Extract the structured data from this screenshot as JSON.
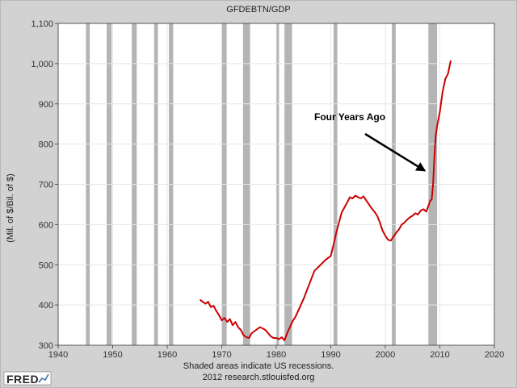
{
  "chart_data": {
    "type": "line",
    "title": "GFDEBTN/GDP",
    "xlabel": "",
    "ylabel": "(Mil. of $/Bil. of $)",
    "xlim": [
      1940,
      2020
    ],
    "ylim": [
      300,
      1100
    ],
    "x_ticks": [
      1940,
      1950,
      1960,
      1970,
      1980,
      1990,
      2000,
      2010,
      2020
    ],
    "x_tick_labels": [
      "1940",
      "1950",
      "1960",
      "1970",
      "1980",
      "1990",
      "2000",
      "2010",
      "2020"
    ],
    "y_ticks": [
      300,
      400,
      500,
      600,
      700,
      800,
      900,
      1000,
      1100
    ],
    "y_tick_labels": [
      "300",
      "400",
      "500",
      "600",
      "700",
      "800",
      "900",
      "1,000",
      "1,100"
    ],
    "grid": true,
    "line_color": "#cc0000",
    "recession_color": "#b4b4b4",
    "plot_background": "#ffffff",
    "frame_background": "#d2d2d2",
    "recessions": [
      [
        1945.1,
        1945.8
      ],
      [
        1948.9,
        1949.8
      ],
      [
        1953.5,
        1954.4
      ],
      [
        1957.6,
        1958.3
      ],
      [
        1960.3,
        1961.1
      ],
      [
        1969.9,
        1970.9
      ],
      [
        1973.9,
        1975.2
      ],
      [
        1980.0,
        1980.5
      ],
      [
        1981.5,
        1982.9
      ],
      [
        1990.5,
        1991.2
      ],
      [
        2001.2,
        2001.9
      ],
      [
        2007.9,
        2009.5
      ]
    ],
    "series": [
      {
        "name": "GFDEBTN/GDP",
        "x": [
          1966.0,
          1966.5,
          1967.0,
          1967.5,
          1968.0,
          1968.5,
          1969.0,
          1969.5,
          1970.0,
          1970.5,
          1971.0,
          1971.5,
          1972.0,
          1972.5,
          1973.0,
          1973.5,
          1974.0,
          1974.5,
          1975.0,
          1975.5,
          1976.0,
          1976.5,
          1977.0,
          1977.5,
          1978.0,
          1978.5,
          1979.0,
          1979.5,
          1980.0,
          1980.5,
          1981.0,
          1981.5,
          1982.0,
          1982.5,
          1983.0,
          1983.5,
          1984.0,
          1985.0,
          1986.0,
          1987.0,
          1988.0,
          1989.0,
          1990.0,
          1990.5,
          1991.0,
          1991.5,
          1992.0,
          1993.0,
          1993.5,
          1994.0,
          1994.5,
          1995.0,
          1995.5,
          1996.0,
          1996.5,
          1997.0,
          1997.5,
          1998.0,
          1998.5,
          1999.0,
          1999.5,
          2000.0,
          2000.5,
          2001.0,
          2001.5,
          2002.0,
          2002.5,
          2003.0,
          2003.5,
          2004.0,
          2004.5,
          2005.0,
          2005.5,
          2006.0,
          2006.5,
          2007.0,
          2007.5,
          2008.0,
          2008.25,
          2008.5,
          2008.75,
          2009.0,
          2009.25,
          2009.5,
          2010.0,
          2010.5,
          2011.0,
          2011.5,
          2012.0
        ],
        "y": [
          413,
          408,
          403,
          408,
          395,
          398,
          385,
          375,
          362,
          368,
          358,
          365,
          350,
          358,
          345,
          338,
          325,
          320,
          318,
          330,
          335,
          340,
          345,
          342,
          338,
          330,
          322,
          318,
          318,
          315,
          320,
          312,
          330,
          345,
          360,
          370,
          385,
          415,
          450,
          485,
          498,
          512,
          522,
          550,
          580,
          605,
          630,
          655,
          668,
          665,
          672,
          668,
          665,
          670,
          660,
          650,
          640,
          632,
          622,
          605,
          585,
          572,
          562,
          560,
          570,
          580,
          588,
          600,
          605,
          612,
          618,
          622,
          628,
          625,
          635,
          638,
          632,
          650,
          660,
          662,
          700,
          770,
          820,
          845,
          880,
          930,
          962,
          975,
          1008
        ]
      }
    ],
    "annotation": {
      "text": "Four Years Ago",
      "point_x": 2007.9,
      "point_y": 720
    },
    "source_note_1": "Shaded areas indicate US recessions.",
    "source_note_2": "2012 research.stlouisfed.org"
  },
  "branding": {
    "logo_text": "FRED"
  }
}
